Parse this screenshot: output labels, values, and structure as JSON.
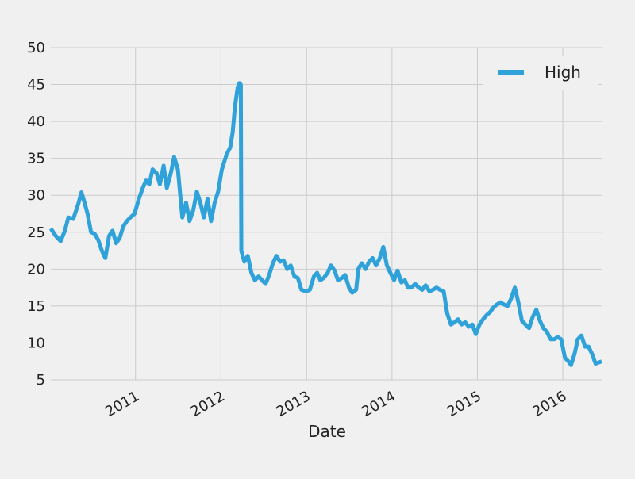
{
  "chart_data": {
    "type": "line",
    "title": "",
    "xlabel": "Date",
    "ylabel": "",
    "x_range": [
      "2010-01-04",
      "2016-06-15"
    ],
    "ylim": [
      5,
      50
    ],
    "y_ticks": [
      "5",
      "10",
      "15",
      "20",
      "25",
      "30",
      "35",
      "40",
      "45",
      "50"
    ],
    "x_ticks": [
      {
        "date": "2011-01-01",
        "label": "2011"
      },
      {
        "date": "2012-01-01",
        "label": "2012"
      },
      {
        "date": "2013-01-01",
        "label": "2013"
      },
      {
        "date": "2014-01-01",
        "label": "2014"
      },
      {
        "date": "2015-01-01",
        "label": "2015"
      },
      {
        "date": "2016-01-01",
        "label": "2016"
      }
    ],
    "grid": true,
    "legend": {
      "position": "top-right",
      "entries": [
        "High"
      ]
    },
    "series": [
      {
        "name": "High",
        "color": "#30a2da",
        "points": [
          [
            "2010-01-04",
            25.5
          ],
          [
            "2010-01-25",
            24.5
          ],
          [
            "2010-02-15",
            23.8
          ],
          [
            "2010-03-05",
            25.2
          ],
          [
            "2010-03-20",
            27.0
          ],
          [
            "2010-04-10",
            26.8
          ],
          [
            "2010-05-01",
            28.8
          ],
          [
            "2010-05-15",
            30.4
          ],
          [
            "2010-05-28",
            29.0
          ],
          [
            "2010-06-10",
            27.5
          ],
          [
            "2010-06-25",
            25.0
          ],
          [
            "2010-07-10",
            24.8
          ],
          [
            "2010-07-25",
            24.0
          ],
          [
            "2010-08-10",
            22.5
          ],
          [
            "2010-08-25",
            21.5
          ],
          [
            "2010-09-10",
            24.5
          ],
          [
            "2010-09-25",
            25.2
          ],
          [
            "2010-10-10",
            23.5
          ],
          [
            "2010-10-25",
            24.2
          ],
          [
            "2010-11-10",
            25.8
          ],
          [
            "2010-11-25",
            26.5
          ],
          [
            "2010-12-10",
            27.0
          ],
          [
            "2010-12-28",
            27.5
          ],
          [
            "2011-01-15",
            29.5
          ],
          [
            "2011-02-01",
            31.0
          ],
          [
            "2011-02-15",
            32.0
          ],
          [
            "2011-03-01",
            31.5
          ],
          [
            "2011-03-15",
            33.5
          ],
          [
            "2011-04-01",
            33.0
          ],
          [
            "2011-04-15",
            31.5
          ],
          [
            "2011-05-01",
            34.0
          ],
          [
            "2011-05-15",
            31.0
          ],
          [
            "2011-06-01",
            33.0
          ],
          [
            "2011-06-15",
            35.2
          ],
          [
            "2011-07-01",
            33.5
          ],
          [
            "2011-07-20",
            27.0
          ],
          [
            "2011-08-05",
            29.0
          ],
          [
            "2011-08-20",
            26.5
          ],
          [
            "2011-09-05",
            28.0
          ],
          [
            "2011-09-20",
            30.5
          ],
          [
            "2011-10-05",
            29.0
          ],
          [
            "2011-10-20",
            27.0
          ],
          [
            "2011-11-05",
            29.5
          ],
          [
            "2011-11-20",
            26.5
          ],
          [
            "2011-12-05",
            29.0
          ],
          [
            "2011-12-20",
            30.5
          ],
          [
            "2012-01-05",
            33.5
          ],
          [
            "2012-01-25",
            35.5
          ],
          [
            "2012-02-10",
            36.5
          ],
          [
            "2012-02-20",
            38.5
          ],
          [
            "2012-03-01",
            42.0
          ],
          [
            "2012-03-12",
            44.5
          ],
          [
            "2012-03-20",
            45.2
          ],
          [
            "2012-03-26",
            45.0
          ],
          [
            "2012-03-28",
            22.5
          ],
          [
            "2012-04-10",
            21.0
          ],
          [
            "2012-04-25",
            21.8
          ],
          [
            "2012-05-10",
            19.5
          ],
          [
            "2012-05-25",
            18.5
          ],
          [
            "2012-06-10",
            19.0
          ],
          [
            "2012-06-25",
            18.5
          ],
          [
            "2012-07-10",
            18.0
          ],
          [
            "2012-07-25",
            19.2
          ],
          [
            "2012-08-10",
            20.8
          ],
          [
            "2012-08-25",
            21.8
          ],
          [
            "2012-09-10",
            21.0
          ],
          [
            "2012-09-25",
            21.2
          ],
          [
            "2012-10-10",
            20.0
          ],
          [
            "2012-10-25",
            20.5
          ],
          [
            "2012-11-10",
            19.0
          ],
          [
            "2012-11-25",
            18.8
          ],
          [
            "2012-12-10",
            17.2
          ],
          [
            "2012-12-30",
            17.0
          ],
          [
            "2013-01-15",
            17.2
          ],
          [
            "2013-02-01",
            19.0
          ],
          [
            "2013-02-15",
            19.5
          ],
          [
            "2013-03-01",
            18.5
          ],
          [
            "2013-03-15",
            18.8
          ],
          [
            "2013-04-01",
            19.5
          ],
          [
            "2013-04-15",
            20.5
          ],
          [
            "2013-05-01",
            19.8
          ],
          [
            "2013-05-15",
            18.5
          ],
          [
            "2013-06-01",
            18.8
          ],
          [
            "2013-06-15",
            19.2
          ],
          [
            "2013-07-01",
            17.5
          ],
          [
            "2013-07-15",
            16.8
          ],
          [
            "2013-08-01",
            17.2
          ],
          [
            "2013-08-10",
            20.0
          ],
          [
            "2013-08-25",
            20.8
          ],
          [
            "2013-09-10",
            20.0
          ],
          [
            "2013-09-25",
            21.0
          ],
          [
            "2013-10-10",
            21.5
          ],
          [
            "2013-10-25",
            20.5
          ],
          [
            "2013-11-10",
            21.5
          ],
          [
            "2013-11-25",
            23.0
          ],
          [
            "2013-12-10",
            20.5
          ],
          [
            "2013-12-25",
            19.5
          ],
          [
            "2014-01-10",
            18.5
          ],
          [
            "2014-01-25",
            19.8
          ],
          [
            "2014-02-10",
            18.2
          ],
          [
            "2014-02-25",
            18.5
          ],
          [
            "2014-03-10",
            17.5
          ],
          [
            "2014-03-25",
            17.5
          ],
          [
            "2014-04-10",
            18.0
          ],
          [
            "2014-04-25",
            17.5
          ],
          [
            "2014-05-10",
            17.2
          ],
          [
            "2014-05-25",
            17.8
          ],
          [
            "2014-06-10",
            17.0
          ],
          [
            "2014-06-25",
            17.2
          ],
          [
            "2014-07-10",
            17.5
          ],
          [
            "2014-07-25",
            17.2
          ],
          [
            "2014-08-10",
            17.0
          ],
          [
            "2014-08-25",
            14.0
          ],
          [
            "2014-09-10",
            12.5
          ],
          [
            "2014-09-25",
            12.8
          ],
          [
            "2014-10-10",
            13.2
          ],
          [
            "2014-10-25",
            12.5
          ],
          [
            "2014-11-10",
            12.8
          ],
          [
            "2014-11-25",
            12.2
          ],
          [
            "2014-12-10",
            12.5
          ],
          [
            "2014-12-25",
            11.2
          ],
          [
            "2015-01-10",
            12.5
          ],
          [
            "2015-01-25",
            13.2
          ],
          [
            "2015-02-10",
            13.8
          ],
          [
            "2015-02-25",
            14.2
          ],
          [
            "2015-03-10",
            14.8
          ],
          [
            "2015-03-25",
            15.2
          ],
          [
            "2015-04-10",
            15.5
          ],
          [
            "2015-04-25",
            15.2
          ],
          [
            "2015-05-10",
            15.0
          ],
          [
            "2015-05-25",
            16.0
          ],
          [
            "2015-06-10",
            17.5
          ],
          [
            "2015-06-25",
            15.5
          ],
          [
            "2015-07-10",
            13.0
          ],
          [
            "2015-07-25",
            12.5
          ],
          [
            "2015-08-10",
            12.0
          ],
          [
            "2015-08-25",
            13.5
          ],
          [
            "2015-09-10",
            14.5
          ],
          [
            "2015-09-25",
            13.0
          ],
          [
            "2015-10-10",
            12.0
          ],
          [
            "2015-10-25",
            11.5
          ],
          [
            "2015-11-10",
            10.5
          ],
          [
            "2015-11-25",
            10.5
          ],
          [
            "2015-12-10",
            10.8
          ],
          [
            "2015-12-25",
            10.5
          ],
          [
            "2016-01-10",
            8.0
          ],
          [
            "2016-01-25",
            7.5
          ],
          [
            "2016-02-05",
            7.0
          ],
          [
            "2016-02-20",
            8.5
          ],
          [
            "2016-03-05",
            10.5
          ],
          [
            "2016-03-20",
            11.0
          ],
          [
            "2016-04-05",
            9.5
          ],
          [
            "2016-04-20",
            9.5
          ],
          [
            "2016-05-05",
            8.5
          ],
          [
            "2016-05-20",
            7.2
          ],
          [
            "2016-06-15",
            7.5
          ]
        ]
      }
    ]
  }
}
